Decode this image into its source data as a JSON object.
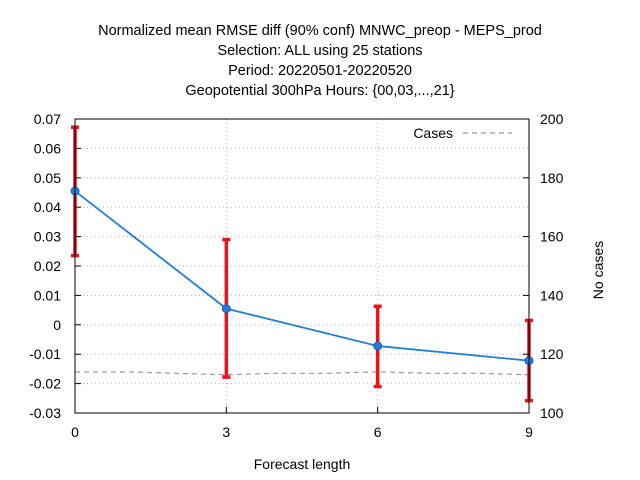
{
  "chart_data": {
    "type": "line",
    "title_lines": [
      "Normalized mean RMSE diff (90% conf) MNWC_preop - MEPS_prod",
      "Selection: ALL using    25 stations",
      "Period: 20220501-20220520",
      "Geopotential 300hPa   Hours: {00,03,...,21}"
    ],
    "xlabel": "Forecast length",
    "ylabel": "",
    "y2label": "No cases",
    "x_ticks": [
      0,
      3,
      6,
      9
    ],
    "x_tick_labels": [
      "0",
      "3",
      "6",
      "9"
    ],
    "xlim": [
      0,
      9
    ],
    "ylim": [
      -0.03,
      0.07
    ],
    "y_ticks": [
      -0.03,
      -0.02,
      -0.01,
      0,
      0.01,
      0.02,
      0.03,
      0.04,
      0.05,
      0.06,
      0.07
    ],
    "y_tick_labels": [
      "-0.03",
      "-0.02",
      "-0.01",
      "0",
      "0.01",
      "0.02",
      "0.03",
      "0.04",
      "0.05",
      "0.06",
      "0.07"
    ],
    "y2lim": [
      100,
      200
    ],
    "y2_ticks": [
      100,
      120,
      140,
      160,
      180,
      200
    ],
    "y2_tick_labels": [
      "100",
      "120",
      "140",
      "160",
      "180",
      "200"
    ],
    "grid": true,
    "legend_position": "top-right",
    "series": [
      {
        "values": [
          {
            "x": 0,
            "y": 0.0455,
            "low": 0.0235,
            "high": 0.0672
          },
          {
            "x": 3,
            "y": 0.0055,
            "low": -0.0178,
            "high": 0.029
          },
          {
            "x": 6,
            "y": -0.0072,
            "low": -0.021,
            "high": 0.0063
          },
          {
            "x": 9,
            "y": -0.0122,
            "low": -0.0258,
            "high": 0.0015
          }
        ],
        "color": "#1f7fd8",
        "errorbar_color": "#e8141a"
      },
      {
        "name": "Cases",
        "axis": "y2",
        "style": "dashed",
        "color": "#999999",
        "values": [
          {
            "x": 0,
            "y": 114
          },
          {
            "x": 1,
            "y": 114
          },
          {
            "x": 2,
            "y": 113.5
          },
          {
            "x": 3,
            "y": 113
          },
          {
            "x": 4,
            "y": 113.5
          },
          {
            "x": 5,
            "y": 113.5
          },
          {
            "x": 6,
            "y": 114
          },
          {
            "x": 7,
            "y": 113.5
          },
          {
            "x": 8,
            "y": 113.5
          },
          {
            "x": 9,
            "y": 113
          }
        ]
      }
    ]
  }
}
